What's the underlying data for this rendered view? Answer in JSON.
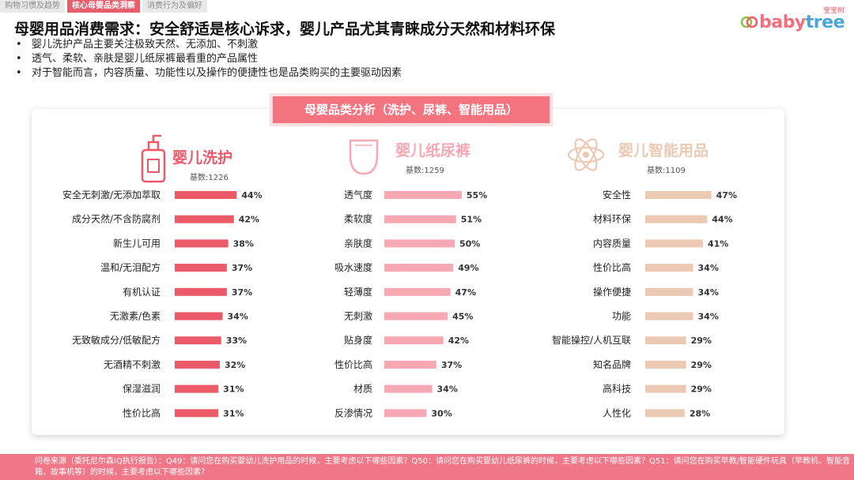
{
  "tabs": [
    {
      "label": "购物习惯及趋势",
      "active": false
    },
    {
      "label": "核心母婴品类洞察",
      "active": true
    },
    {
      "label": "消费行为及偏好",
      "active": false
    }
  ],
  "logo": {
    "sub": "宝宝树",
    "text": "babytree"
  },
  "headline": "母婴用品消费需求：安全舒适是核心诉求，婴儿产品尤其青睐成分天然和材料环保",
  "bullets": [
    "婴儿洗护产品主要关注极致天然、无添加、不刺激",
    "透气、柔软、亲肤是婴儿纸尿裤最看重的产品属性",
    "对于智能而言，内容质量、功能性以及操作的便捷性也是品类购买的主要驱动因素"
  ],
  "panel_title": "母婴品类分析（洗护、尿裤、智能用品）",
  "footer": "问卷来源（委托尼尔森IQ执行报告）：Q49：请问您在购买婴幼儿洗护用品的时候，主要考虑以下哪些因素？Q50：请问您在购买婴幼儿纸尿裤的时候，主要考虑以下哪些因素？Q51：请问您在购买早教/智能硬件玩具（早教机、智能音箱、故事机等）的时候，主要考虑以下哪些因素？",
  "chart_data": [
    {
      "type": "bar",
      "title": "婴儿洗护",
      "subtitle": "基数:1226",
      "icon": "lotion-bottle-icon",
      "color": "#ea5a69",
      "categories": [
        "安全无刺激/无添加萃取",
        "成分天然/不含防腐剂",
        "新生儿可用",
        "温和/无泪配方",
        "有机认证",
        "无激素/色素",
        "无致敏成分/低敏配方",
        "无酒精不刺激",
        "保湿滋润",
        "性价比高"
      ],
      "values": [
        44,
        42,
        38,
        37,
        37,
        34,
        33,
        32,
        31,
        31
      ],
      "labels": [
        "44%",
        "42%",
        "38%",
        "37%",
        "37%",
        "34%",
        "33%",
        "32%",
        "31%",
        "31%"
      ]
    },
    {
      "type": "bar",
      "title": "婴儿纸尿裤",
      "subtitle": "基数:1259",
      "icon": "diaper-icon",
      "color": "#f6a8b3",
      "categories": [
        "透气度",
        "柔软度",
        "亲肤度",
        "吸水速度",
        "轻薄度",
        "无刺激",
        "贴身度",
        "性价比高",
        "材质",
        "反渗情况"
      ],
      "values": [
        55,
        51,
        50,
        49,
        47,
        45,
        42,
        37,
        34,
        30
      ],
      "labels": [
        "55%",
        "51%",
        "50%",
        "49%",
        "47%",
        "45%",
        "42%",
        "37%",
        "34%",
        "30%"
      ]
    },
    {
      "type": "bar",
      "title": "婴儿智能用品",
      "subtitle": "基数:1109",
      "icon": "atom-icon",
      "color": "#ecc9b3",
      "categories": [
        "安全性",
        "材料环保",
        "内容质量",
        "性价比高",
        "操作便捷",
        "功能",
        "智能操控/人机互联",
        "知名品牌",
        "高科技",
        "人性化"
      ],
      "values": [
        47,
        44,
        41,
        34,
        34,
        34,
        29,
        29,
        29,
        28
      ],
      "labels": [
        "47%",
        "44%",
        "41%",
        "34%",
        "34%",
        "34%",
        "29%",
        "29%",
        "29%",
        "28%"
      ]
    }
  ]
}
